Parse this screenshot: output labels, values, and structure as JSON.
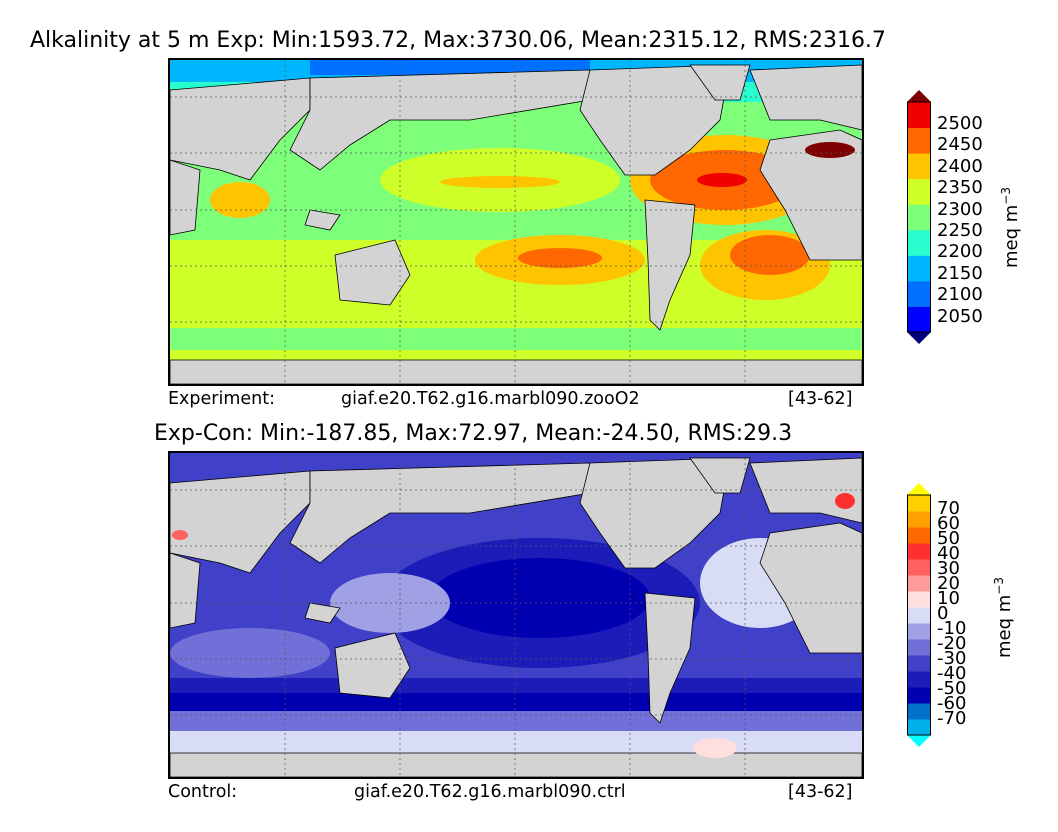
{
  "chart_data": [
    {
      "type": "heatmap",
      "title": "Alkalinity at 5 m Exp: Min:1593.72, Max:3730.06, Mean:2315.12, RMS:2316.7",
      "colorbar": {
        "label": "meq m$^{-3}$",
        "levels": [
          2050,
          2100,
          2150,
          2200,
          2250,
          2300,
          2350,
          2400,
          2450,
          2500
        ],
        "tick_labels": [
          "2500",
          "2450",
          "2400",
          "2350",
          "2300",
          "2250",
          "2200",
          "2150",
          "2100",
          "2050"
        ],
        "colors": [
          "#00007f",
          "#0000ff",
          "#0070ff",
          "#00b7ff",
          "#29ffce",
          "#7dff7a",
          "#ceff29",
          "#ffc400",
          "#ff6800",
          "#f00000",
          "#7f0000"
        ],
        "extend": "both"
      },
      "footer": {
        "left": "Experiment:",
        "center": "giaf.e20.T62.g16.marbl090.zooO2",
        "right": "[43-62]"
      }
    },
    {
      "type": "heatmap",
      "title": "Exp-Con: Min:-187.85, Max:72.97, Mean:-24.50, RMS:29.3",
      "colorbar": {
        "label": "meq m$^{-3}$",
        "levels": [
          -70,
          -60,
          -50,
          -40,
          -30,
          -20,
          -10,
          0,
          10,
          20,
          30,
          40,
          50,
          60,
          70
        ],
        "tick_labels": [
          "70",
          "60",
          "50",
          "40",
          "30",
          "20",
          "10",
          "0",
          "-10",
          "-20",
          "-30",
          "-40",
          "-50",
          "-60",
          "-70"
        ],
        "colors": [
          "#00ffff",
          "#00b0e8",
          "#0070c8",
          "#0000b0",
          "#1c1cb8",
          "#4040c8",
          "#7070d8",
          "#a0a0e4",
          "#d8dcf4",
          "#ffdede",
          "#ff9a9a",
          "#ff6060",
          "#ff3030",
          "#ff6a00",
          "#ffa000",
          "#ffd000",
          "#ffff00"
        ],
        "extend": "both"
      },
      "footer": {
        "left": "Control:",
        "center": "giaf.e20.T62.g16.marbl090.ctrl",
        "right": "[43-62]"
      }
    }
  ]
}
